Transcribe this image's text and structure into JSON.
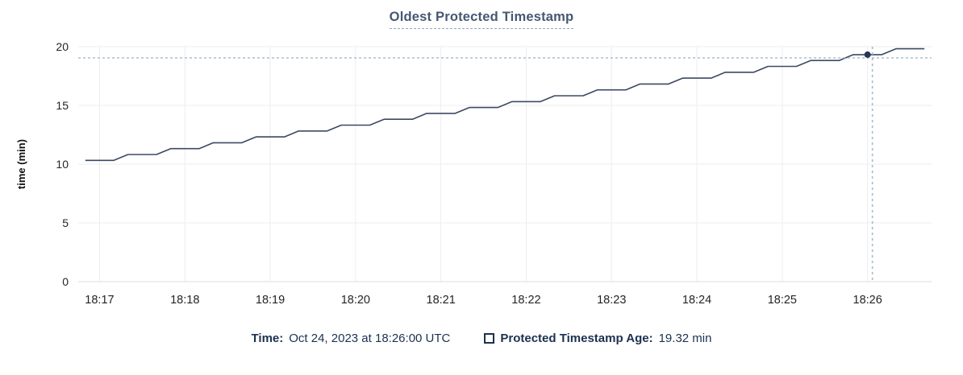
{
  "title": "Oldest Protected Timestamp",
  "chart_data": {
    "type": "line",
    "title": "Oldest Protected Timestamp",
    "xlabel": "",
    "ylabel": "time (min)",
    "ylim": [
      0,
      20
    ],
    "y_ticks": [
      0,
      5,
      10,
      15,
      20
    ],
    "x_tick_labels": [
      "18:17",
      "18:18",
      "18:19",
      "18:20",
      "18:21",
      "18:22",
      "18:23",
      "18:24",
      "18:25",
      "18:26"
    ],
    "x_domain_sec_after_1816": [
      45,
      645
    ],
    "grid": true,
    "legend_position": "bottom",
    "series": [
      {
        "name": "Protected Timestamp Age",
        "unit": "min",
        "sample_start_time": "18:16:50",
        "sample_start_sec_after_1816": 50,
        "sample_step_sec": 10,
        "values": [
          10.32,
          10.32,
          10.32,
          10.82,
          10.82,
          10.82,
          11.32,
          11.32,
          11.32,
          11.82,
          11.82,
          11.82,
          12.32,
          12.32,
          12.32,
          12.82,
          12.82,
          12.82,
          13.32,
          13.32,
          13.32,
          13.82,
          13.82,
          13.82,
          14.32,
          14.32,
          14.32,
          14.82,
          14.82,
          14.82,
          15.32,
          15.32,
          15.32,
          15.82,
          15.82,
          15.82,
          16.32,
          16.32,
          16.32,
          16.82,
          16.82,
          16.82,
          17.32,
          17.32,
          17.32,
          17.82,
          17.82,
          17.82,
          18.32,
          18.32,
          18.32,
          18.82,
          18.82,
          18.82,
          19.32,
          19.32,
          19.32,
          19.82,
          19.82,
          19.82
        ]
      }
    ],
    "highlight_point": {
      "time": "18:26:00",
      "sec_after_1816": 600,
      "value": 19.32
    }
  },
  "legend": {
    "time_label": "Time:",
    "time_value": "Oct 24, 2023 at 18:26:00 UTC",
    "series_label": "Protected Timestamp Age:",
    "series_value": "19.32 min"
  },
  "colors": {
    "line": "#3b4a63",
    "dot": "#263850",
    "crosshair": "#a4bbca",
    "grid": "#ededed",
    "baseline": "#dcdcdc",
    "tick_text": "#242424",
    "axis_label_text": "#111111",
    "title_text": "#455872",
    "legend_text": "#1c3150"
  }
}
